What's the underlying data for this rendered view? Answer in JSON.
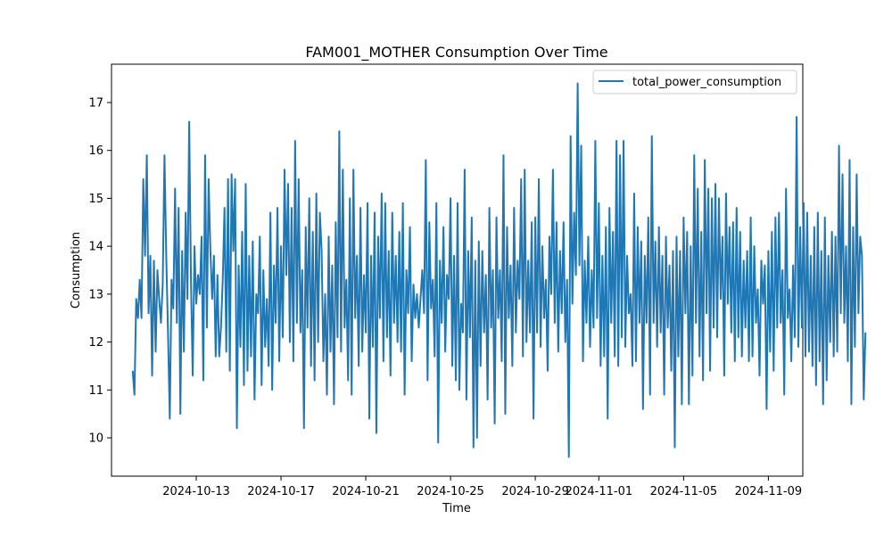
{
  "chart_data": {
    "type": "line",
    "title": "FAM001_MOTHER Consumption Over Time",
    "xlabel": "Time",
    "ylabel": "Consumption",
    "x_ticks": [
      "2024-10-13",
      "2024-10-17",
      "2024-10-21",
      "2024-10-25",
      "2024-10-29",
      "2024-11-01",
      "2024-11-05",
      "2024-11-09"
    ],
    "y_ticks": [
      10,
      11,
      12,
      13,
      14,
      15,
      16,
      17
    ],
    "xlim": [
      "2024-10-09",
      "2024-11-10T15:00"
    ],
    "ylim": [
      9.2,
      17.8
    ],
    "grid": false,
    "legend_position": "top-right",
    "series_color": "#1f77b4",
    "series": [
      {
        "name": "total_power_consumption",
        "start": "2024-10-10",
        "end": "2024-11-10",
        "interval_hours": 2,
        "values": [
          11.4,
          10.9,
          12.9,
          12.5,
          13.3,
          12.5,
          15.4,
          13.8,
          15.9,
          12.6,
          13.8,
          11.3,
          13.7,
          11.8,
          13.5,
          12.9,
          12.4,
          13.2,
          15.9,
          13.8,
          12.2,
          10.4,
          13.3,
          12.7,
          15.2,
          12.4,
          14.8,
          10.5,
          13.9,
          11.8,
          14.7,
          12.9,
          16.6,
          13.3,
          11.3,
          14.0,
          12.8,
          13.4,
          13.0,
          14.2,
          11.2,
          15.9,
          12.3,
          15.4,
          13.9,
          12.9,
          13.8,
          11.7,
          13.4,
          11.7,
          12.3,
          13.3,
          14.8,
          11.8,
          15.4,
          11.4,
          15.5,
          13.9,
          15.4,
          10.2,
          13.6,
          11.9,
          14.3,
          11.1,
          15.3,
          11.4,
          13.8,
          11.7,
          14.1,
          10.8,
          13.0,
          12.6,
          14.2,
          11.1,
          13.5,
          11.9,
          12.9,
          11.5,
          14.7,
          11.0,
          13.6,
          12.4,
          14.8,
          11.6,
          14.0,
          12.1,
          15.6,
          13.4,
          15.3,
          12.0,
          14.8,
          11.6,
          16.2,
          12.4,
          15.4,
          12.2,
          13.5,
          10.2,
          14.4,
          12.3,
          15.0,
          11.5,
          14.3,
          11.2,
          15.1,
          12.0,
          14.7,
          13.9,
          11.6,
          13.0,
          10.9,
          14.2,
          11.8,
          13.6,
          10.7,
          14.5,
          12.1,
          16.4,
          11.8,
          15.6,
          12.3,
          13.3,
          11.2,
          15.0,
          10.9,
          15.6,
          12.5,
          13.8,
          11.5,
          14.8,
          11.8,
          13.4,
          12.2,
          14.9,
          10.4,
          13.8,
          11.9,
          14.7,
          10.1,
          14.2,
          12.5,
          15.1,
          11.6,
          14.9,
          12.1,
          13.9,
          11.3,
          14.7,
          12.4,
          13.8,
          12.0,
          14.3,
          11.8,
          14.9,
          10.9,
          13.5,
          12.6,
          14.4,
          11.6,
          13.2,
          12.5,
          13.0,
          12.3,
          12.9,
          13.5,
          12.6,
          15.8,
          11.2,
          14.5,
          12.7,
          13.3,
          11.7,
          14.9,
          9.9,
          13.7,
          12.4,
          14.4,
          11.8,
          13.4,
          12.9,
          15.0,
          11.5,
          13.8,
          11.2,
          14.9,
          11.0,
          12.8,
          12.2,
          15.6,
          10.8,
          13.9,
          12.1,
          14.6,
          9.8,
          13.7,
          10.0,
          14.1,
          11.5,
          13.9,
          12.2,
          13.4,
          10.8,
          14.8,
          12.3,
          13.5,
          10.3,
          14.6,
          12.5,
          13.5,
          11.6,
          15.9,
          10.5,
          14.4,
          12.5,
          13.6,
          11.5,
          14.8,
          12.2,
          13.7,
          12.9,
          15.4,
          11.7,
          15.6,
          12.0,
          13.7,
          12.2,
          14.5,
          10.4,
          14.6,
          12.2,
          15.4,
          11.9,
          14.0,
          12.5,
          13.3,
          11.4,
          14.2,
          13.0,
          15.6,
          12.4,
          14.5,
          11.8,
          13.9,
          12.6,
          14.5,
          12.0,
          13.3,
          9.6,
          16.3,
          12.8,
          14.7,
          13.4,
          17.4,
          13.6,
          16.1,
          11.6,
          13.7,
          12.4,
          14.2,
          11.9,
          13.5,
          12.3,
          16.2,
          12.5,
          14.9,
          11.5,
          13.8,
          11.7,
          14.4,
          10.4,
          14.8,
          12.4,
          14.3,
          11.7,
          16.2,
          11.5,
          15.9,
          12.1,
          16.2,
          11.9,
          13.8,
          12.6,
          13.0,
          11.5,
          15.1,
          11.6,
          14.4,
          12.4,
          14.1,
          10.6,
          13.8,
          12.4,
          14.6,
          10.9,
          16.3,
          12.4,
          14.1,
          11.9,
          14.4,
          12.2,
          13.8,
          10.9,
          14.2,
          12.3,
          13.6,
          11.4,
          13.9,
          9.8,
          14.2,
          11.7,
          13.9,
          10.7,
          14.6,
          12.6,
          14.3,
          10.7,
          14.0,
          11.3,
          15.9,
          12.4,
          15.2,
          11.7,
          14.3,
          11.2,
          15.8,
          12.6,
          15.2,
          11.4,
          15.0,
          12.3,
          15.3,
          12.1,
          15.0,
          12.9,
          14.2,
          11.3,
          15.1,
          12.8,
          14.4,
          12.2,
          14.5,
          11.6,
          14.8,
          12.1,
          14.3,
          11.7,
          13.7,
          12.3,
          13.9,
          11.6,
          14.6,
          11.7,
          14.0,
          12.4,
          13.1,
          11.3,
          13.7,
          12.8,
          13.6,
          10.6,
          13.9,
          11.8,
          14.3,
          11.4,
          14.6,
          12.3,
          14.7,
          12.4,
          13.5,
          10.9,
          15.2,
          12.5,
          13.1,
          11.6,
          13.6,
          12.1,
          16.7,
          11.9,
          14.4,
          12.3,
          14.9,
          11.7,
          14.7,
          11.8,
          13.8,
          11.5,
          14.4,
          11.1,
          14.7,
          11.6,
          13.9,
          10.7,
          14.6,
          11.2,
          13.8,
          12.0,
          14.3,
          11.7,
          14.2,
          11.8,
          16.1,
          12.6,
          15.5,
          12.4,
          14.0,
          11.6,
          15.8,
          10.7,
          14.4,
          11.9,
          15.5,
          12.6,
          14.2,
          13.8,
          10.8,
          12.2
        ]
      }
    ]
  }
}
